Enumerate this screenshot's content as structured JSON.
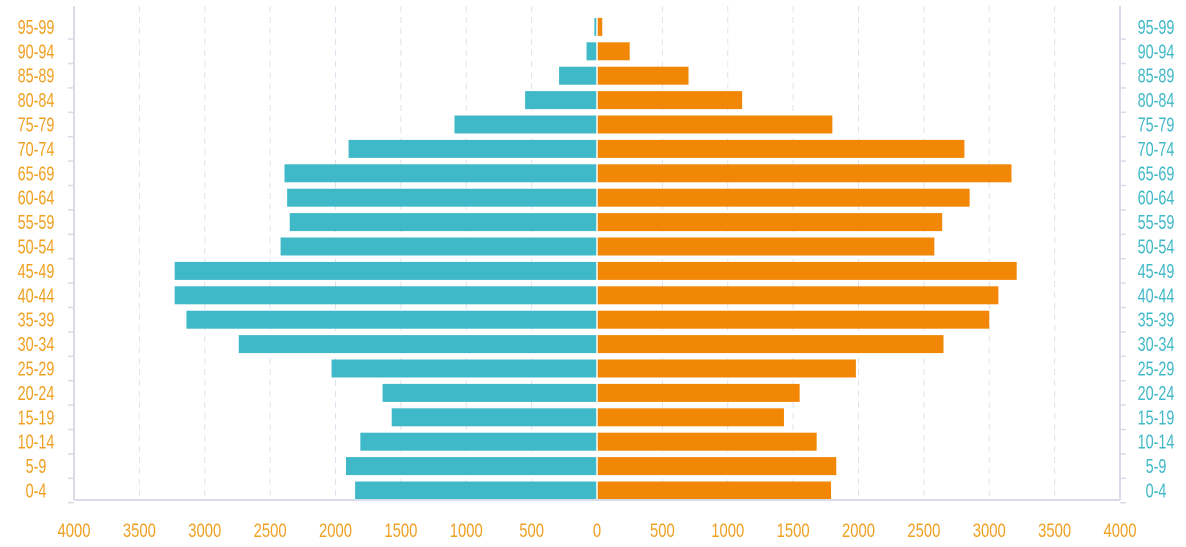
{
  "colors": {
    "male": "#3fb8c8",
    "female": "#f28705",
    "axis": "#d9dbe8",
    "grid": "#dde3ee",
    "x_tick_text": "#f0a020",
    "left_age_text": "#f0a020",
    "right_age_text": "#3fb8c8"
  },
  "chart_data": {
    "type": "bar",
    "orientation": "horizontal",
    "layout": "population-pyramid",
    "categories": [
      "0-4",
      "5-9",
      "10-14",
      "15-19",
      "20-24",
      "25-29",
      "30-34",
      "35-39",
      "40-44",
      "45-49",
      "50-54",
      "55-59",
      "60-64",
      "65-69",
      "70-74",
      "75-79",
      "80-84",
      "85-89",
      "90-94",
      "95-99"
    ],
    "series": [
      {
        "side": "left",
        "color": "#3fb8c8",
        "values": [
          1850,
          1920,
          1810,
          1570,
          1640,
          2030,
          2740,
          3140,
          3230,
          3230,
          2420,
          2350,
          2370,
          2390,
          1900,
          1090,
          550,
          290,
          80,
          20
        ]
      },
      {
        "side": "right",
        "color": "#f28705",
        "values": [
          1790,
          1830,
          1680,
          1430,
          1550,
          1980,
          2650,
          3000,
          3070,
          3210,
          2580,
          2640,
          2850,
          3170,
          2810,
          1800,
          1110,
          700,
          250,
          40
        ]
      }
    ],
    "xlim": [
      -4000,
      4000
    ],
    "x_ticks": [
      4000,
      3500,
      3000,
      2500,
      2000,
      1500,
      1000,
      500,
      0,
      500,
      1000,
      1500,
      2000,
      2500,
      3000,
      3500,
      4000
    ],
    "grid": true,
    "axis_labels": {
      "left": "age-groups",
      "right": "age-groups"
    }
  }
}
